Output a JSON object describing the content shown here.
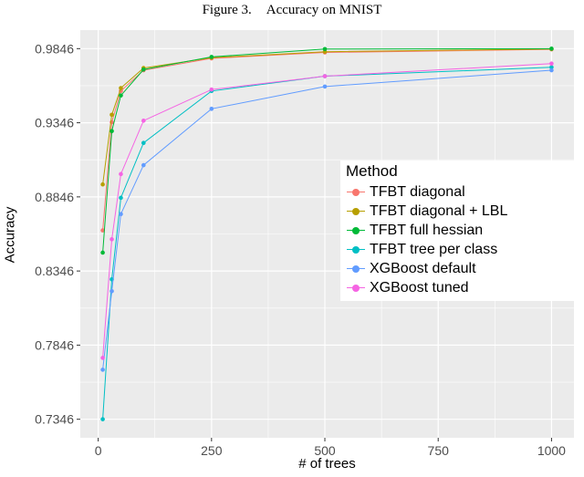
{
  "figure": {
    "caption_label": "Figure 3.",
    "caption_title": "Accuracy on MNIST"
  },
  "chart_data": {
    "type": "line",
    "title": "Figure 3. Accuracy on MNIST",
    "xlabel": "# of trees",
    "ylabel": "Accuracy",
    "grid": true,
    "panel_background": "#EBEBEB",
    "grid_color": "#FFFFFF",
    "tick_label_color": "#4D4D4D",
    "legend_title": "Method",
    "legend_position": "inside-right",
    "xlim": [
      -39.5,
      1049.5
    ],
    "ylim": [
      0.7221,
      0.9971
    ],
    "x_ticks": [
      0,
      250,
      500,
      750,
      1000
    ],
    "y_ticks": [
      0.7346,
      0.7846,
      0.8346,
      0.8846,
      0.9346,
      0.9846
    ],
    "x_minor_ticks": [
      125,
      375,
      625,
      875
    ],
    "y_minor_ticks": [
      0.7596,
      0.8096,
      0.8596,
      0.9096,
      0.9596
    ],
    "x": [
      10,
      30,
      50,
      100,
      250,
      500,
      1000
    ],
    "series": [
      {
        "name": "TFBT diagonal",
        "color": "#F8766D",
        "values": [
          0.862,
          0.935,
          0.956,
          0.97,
          0.978,
          0.982,
          0.9841
        ]
      },
      {
        "name": "TFBT diagonal + LBL",
        "color": "#B79F00",
        "values": [
          0.893,
          0.94,
          0.958,
          0.9715,
          0.9785,
          0.9825,
          0.9843
        ]
      },
      {
        "name": "TFBT full hessian",
        "color": "#00BA38",
        "values": [
          0.847,
          0.929,
          0.953,
          0.9705,
          0.979,
          0.9843,
          0.9846
        ]
      },
      {
        "name": "TFBT tree per class",
        "color": "#00BFC4",
        "values": [
          0.7346,
          0.829,
          0.884,
          0.921,
          0.956,
          0.966,
          0.972
        ]
      },
      {
        "name": "XGBoost default",
        "color": "#619CFF",
        "values": [
          0.768,
          0.821,
          0.873,
          0.906,
          0.944,
          0.959,
          0.97
        ]
      },
      {
        "name": "XGBoost tuned",
        "color": "#F564E3",
        "values": [
          0.776,
          0.856,
          0.9,
          0.936,
          0.957,
          0.966,
          0.9745
        ]
      }
    ]
  }
}
